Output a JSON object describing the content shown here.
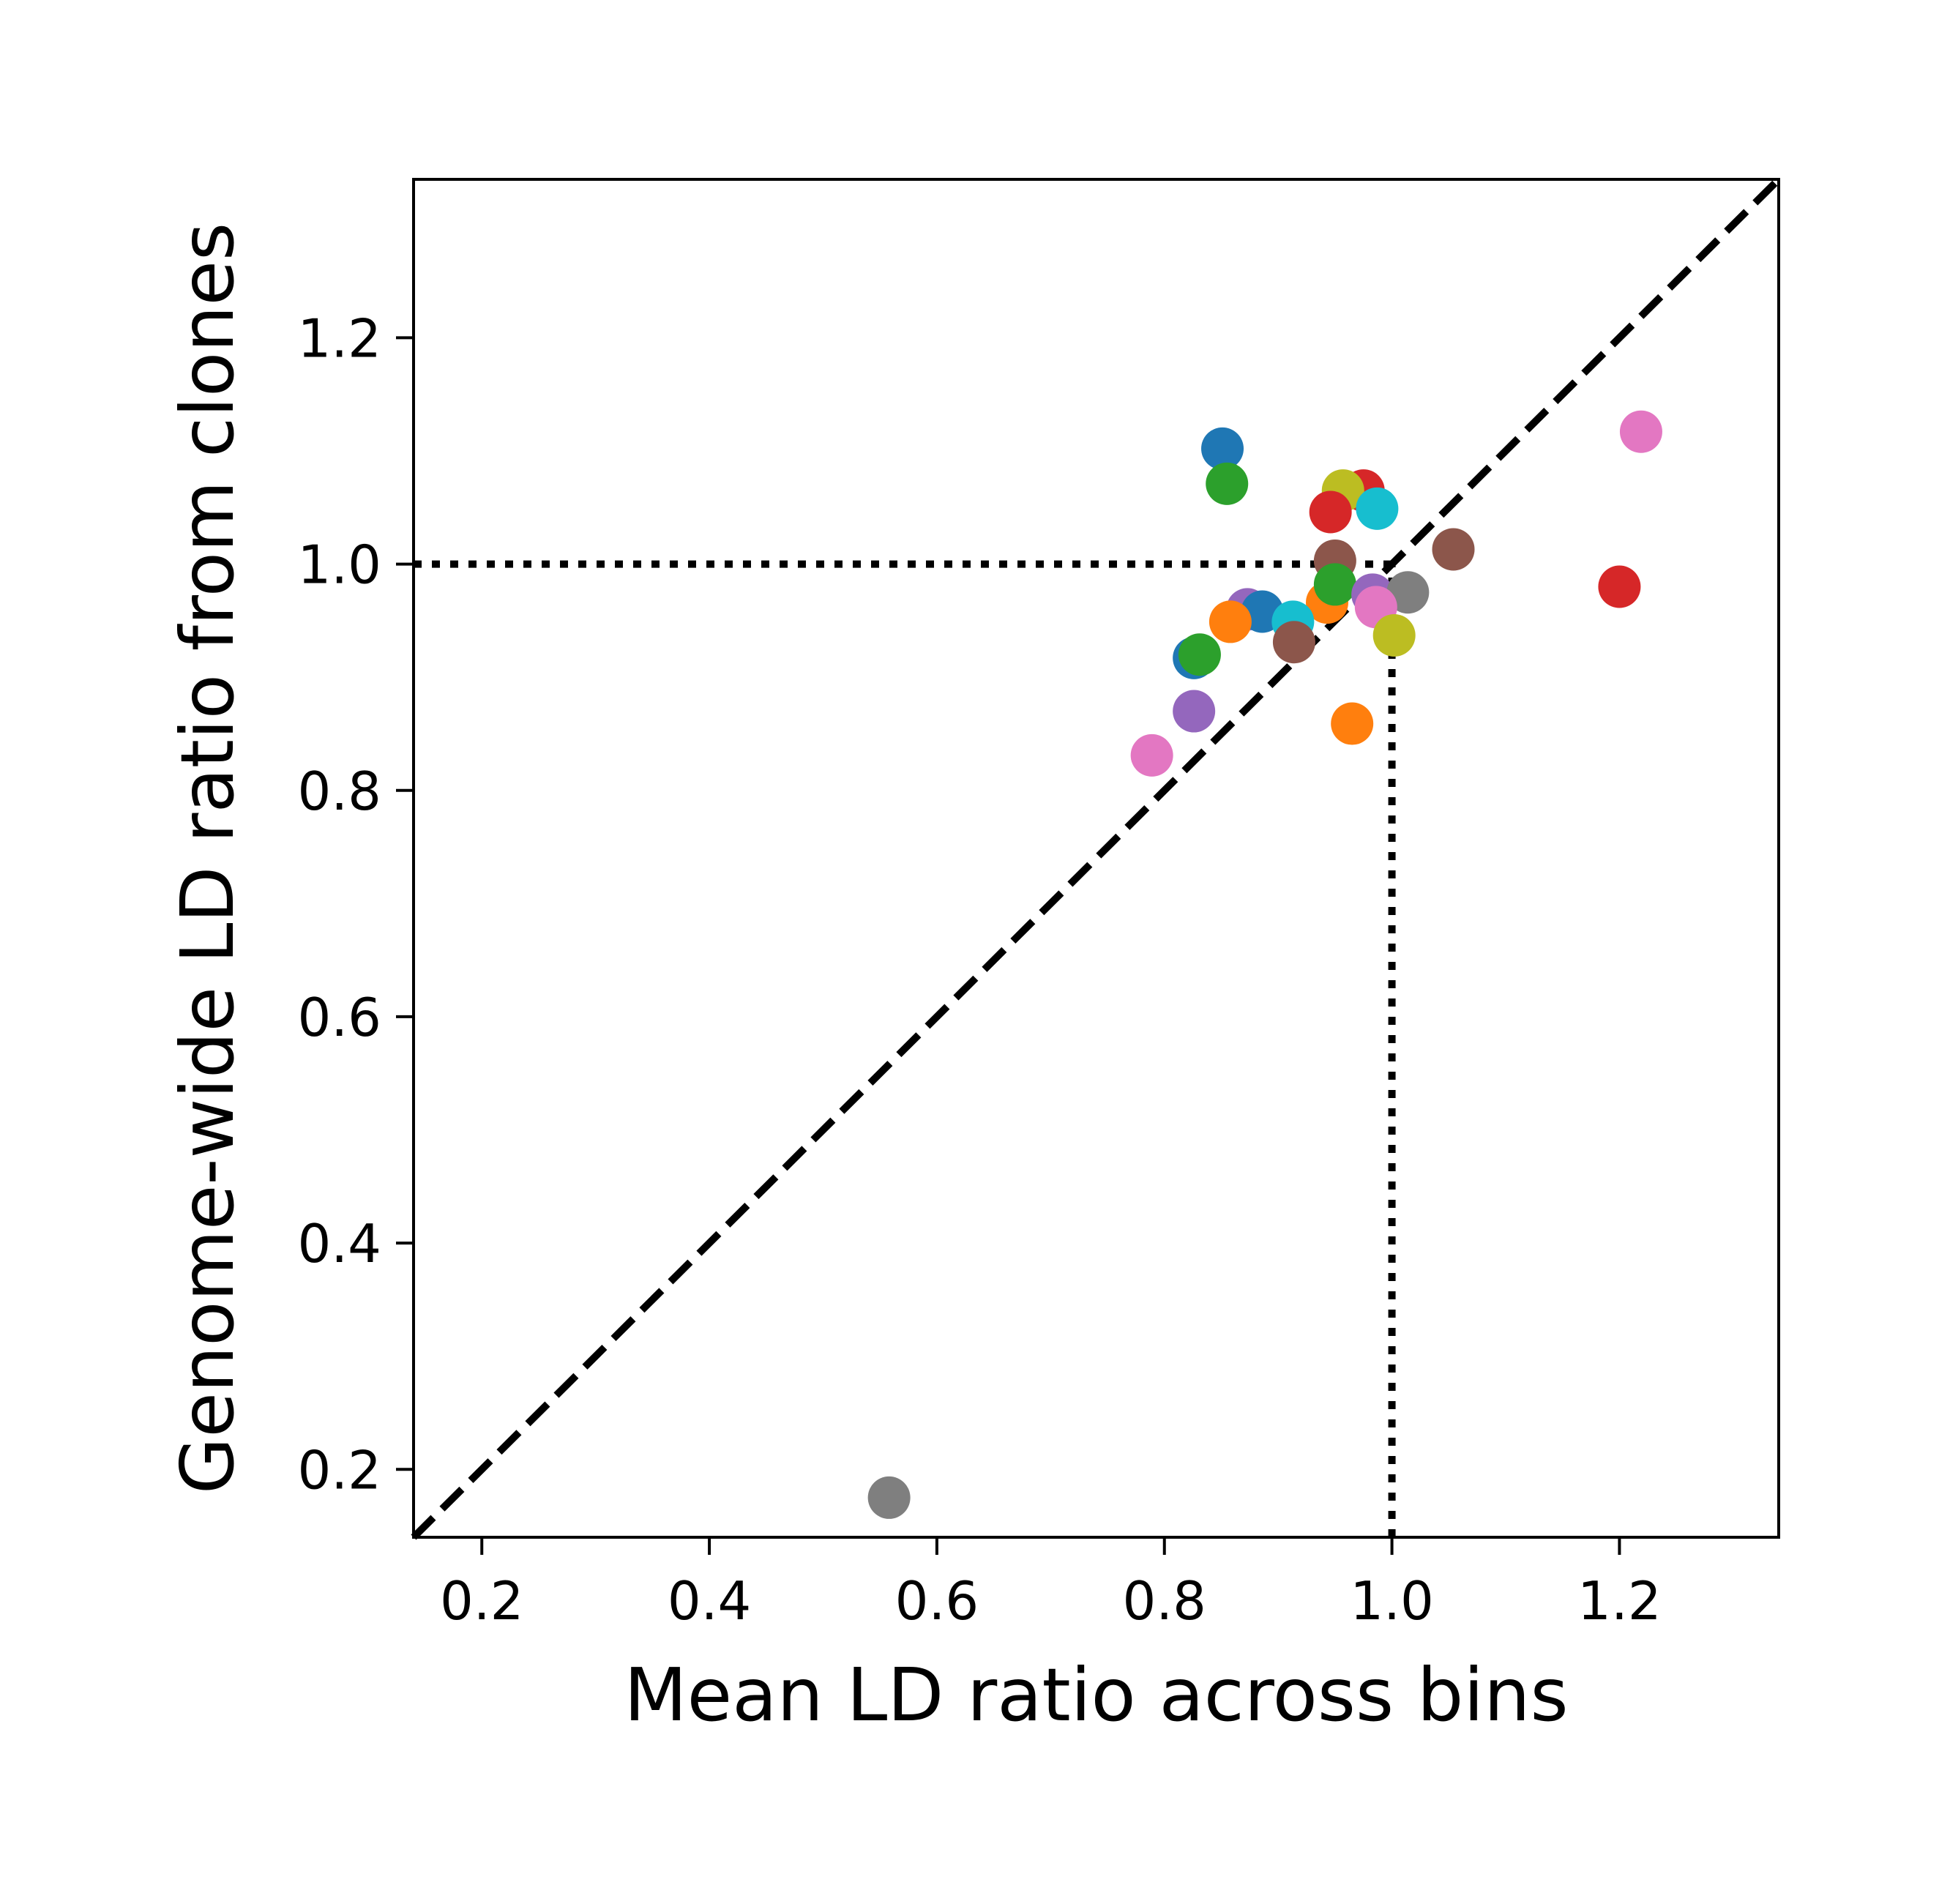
{
  "chart_data": {
    "type": "scatter",
    "xlabel": "Mean LD ratio across bins",
    "ylabel": "Genome-wide LD ratio from clones",
    "xlim": [
      0.14,
      1.34
    ],
    "ylim": [
      0.14,
      1.34
    ],
    "xticks": [
      {
        "value": 0.2,
        "label": "0.2"
      },
      {
        "value": 0.4,
        "label": "0.4"
      },
      {
        "value": 0.6,
        "label": "0.6"
      },
      {
        "value": 0.8,
        "label": "0.8"
      },
      {
        "value": 1.0,
        "label": "1.0"
      },
      {
        "value": 1.2,
        "label": "1.2"
      }
    ],
    "yticks": [
      {
        "value": 0.2,
        "label": "0.2"
      },
      {
        "value": 0.4,
        "label": "0.4"
      },
      {
        "value": 0.6,
        "label": "0.6"
      },
      {
        "value": 0.8,
        "label": "0.8"
      },
      {
        "value": 1.0,
        "label": "1.0"
      },
      {
        "value": 1.2,
        "label": "1.2"
      }
    ],
    "grid": false,
    "reference_lines": [
      {
        "kind": "diagonal",
        "style": "dashed",
        "from": [
          0.14,
          0.14
        ],
        "to": [
          1.34,
          1.34
        ]
      },
      {
        "kind": "horizontal",
        "style": "dotted",
        "y": 1.0,
        "x_from": 0.14,
        "x_to": 1.0
      },
      {
        "kind": "vertical",
        "style": "dotted",
        "x": 1.0,
        "y_from": 0.14,
        "y_to": 1.0
      }
    ],
    "points": [
      {
        "x": 0.851,
        "y": 1.102,
        "color": "#1f77b4"
      },
      {
        "x": 0.855,
        "y": 1.071,
        "color": "#2ca02c"
      },
      {
        "x": 1.219,
        "y": 1.117,
        "color": "#e377c2"
      },
      {
        "x": 0.975,
        "y": 1.065,
        "color": "#d62728"
      },
      {
        "x": 0.957,
        "y": 1.065,
        "color": "#bcbd22"
      },
      {
        "x": 0.946,
        "y": 1.046,
        "color": "#d62728"
      },
      {
        "x": 0.987,
        "y": 1.049,
        "color": "#17becf"
      },
      {
        "x": 1.054,
        "y": 1.013,
        "color": "#8c564b"
      },
      {
        "x": 0.95,
        "y": 1.003,
        "color": "#8c564b"
      },
      {
        "x": 1.2,
        "y": 0.98,
        "color": "#d62728"
      },
      {
        "x": 0.943,
        "y": 0.966,
        "color": "#ff7f0e"
      },
      {
        "x": 0.95,
        "y": 0.982,
        "color": "#2ca02c"
      },
      {
        "x": 0.983,
        "y": 0.973,
        "color": "#9467bd"
      },
      {
        "x": 1.014,
        "y": 0.975,
        "color": "#7f7f7f"
      },
      {
        "x": 0.986,
        "y": 0.962,
        "color": "#e377c2"
      },
      {
        "x": 1.002,
        "y": 0.937,
        "color": "#bcbd22"
      },
      {
        "x": 0.873,
        "y": 0.96,
        "color": "#9467bd"
      },
      {
        "x": 0.886,
        "y": 0.958,
        "color": "#1f77b4"
      },
      {
        "x": 0.858,
        "y": 0.949,
        "color": "#ff7f0e"
      },
      {
        "x": 0.913,
        "y": 0.949,
        "color": "#17becf"
      },
      {
        "x": 0.914,
        "y": 0.931,
        "color": "#8c564b"
      },
      {
        "x": 0.826,
        "y": 0.917,
        "color": "#1f77b4"
      },
      {
        "x": 0.831,
        "y": 0.92,
        "color": "#2ca02c"
      },
      {
        "x": 0.826,
        "y": 0.87,
        "color": "#9467bd"
      },
      {
        "x": 0.965,
        "y": 0.859,
        "color": "#ff7f0e"
      },
      {
        "x": 0.789,
        "y": 0.831,
        "color": "#e377c2"
      },
      {
        "x": 0.558,
        "y": 0.175,
        "color": "#7f7f7f"
      }
    ]
  }
}
